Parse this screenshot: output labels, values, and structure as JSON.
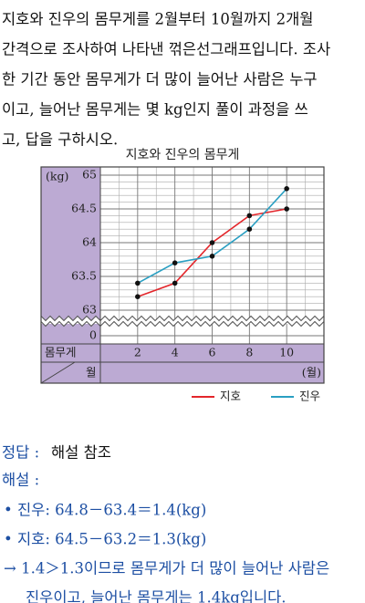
{
  "question": [
    "지호와 진우의 몸무게를 2월부터 10월까지 2개월",
    "간격으로 조사하여 나타낸 꺾은선그래프입니다. 조사",
    "한 기간 동안 몸무게가 더 많이 늘어난 사람은 누구",
    "이고, 늘어난 몸무게는 몇 kg인지 풀이 과정을 쓰",
    "고, 답을 구하시오."
  ],
  "chart_data": {
    "type": "line",
    "title": "지호와 진우의 몸무게",
    "y_unit_label": "(kg)",
    "y_row_label": "몸무게",
    "x_row_label": "월",
    "x_unit_label": "(월)",
    "x": [
      2,
      4,
      6,
      8,
      10
    ],
    "xlim": [
      0,
      12
    ],
    "series": [
      {
        "name": "지호",
        "color": "#e3262b",
        "values": [
          63.2,
          63.4,
          64.0,
          64.4,
          64.5
        ]
      },
      {
        "name": "진우",
        "color": "#2a9fc2",
        "values": [
          63.4,
          63.7,
          63.8,
          64.2,
          64.8
        ]
      }
    ],
    "ylim": [
      63,
      65
    ],
    "yticks": [
      63,
      63.5,
      64,
      64.5,
      65
    ],
    "y_break_tick": 0,
    "grid": true
  },
  "answer": {
    "label": "정답 :",
    "text": "해설 참조"
  },
  "explanation": {
    "label": "해설 :",
    "lines": [
      "• 진우: 64.8－63.4＝1.4(kg)",
      "• 지호: 64.5－63.2＝1.3(kg)",
      "→ 1.4＞1.3이므로 몸무게가 더 많이 늘어난 사람은",
      "진우이고, 늘어난 몸무게는 1.4kg입니다."
    ]
  }
}
